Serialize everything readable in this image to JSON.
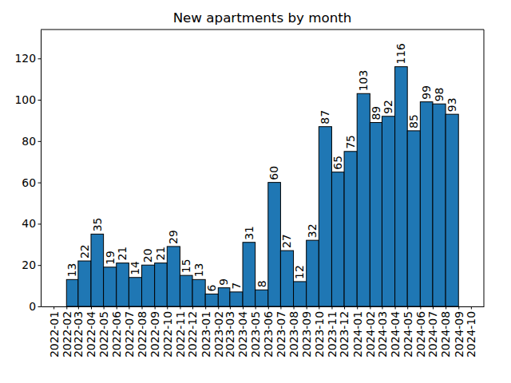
{
  "chart_data": {
    "type": "bar",
    "title": "New apartments by month",
    "x": [
      "2022-02",
      "2022-03",
      "2022-04",
      "2022-05",
      "2022-06",
      "2022-07",
      "2022-08",
      "2022-09",
      "2022-10",
      "2022-11",
      "2022-12",
      "2023-01",
      "2023-02",
      "2023-03",
      "2023-04",
      "2023-05",
      "2023-06",
      "2023-07",
      "2023-08",
      "2023-09",
      "2023-10",
      "2023-11",
      "2023-12",
      "2024-01",
      "2024-02",
      "2024-03",
      "2024-04",
      "2024-05",
      "2024-06",
      "2024-07",
      "2024-08"
    ],
    "values": [
      13,
      22,
      35,
      19,
      21,
      14,
      20,
      21,
      29,
      15,
      13,
      6,
      9,
      7,
      31,
      8,
      60,
      27,
      12,
      32,
      87,
      65,
      75,
      103,
      89,
      92,
      116,
      85,
      99,
      98,
      93
    ],
    "color": "#1f77b4",
    "xlim": [
      "2021-12",
      "2024-11"
    ],
    "xticks": [
      "2022-01",
      "2022-02",
      "2022-03",
      "2022-04",
      "2022-05",
      "2022-06",
      "2022-07",
      "2022-08",
      "2022-09",
      "2022-10",
      "2022-11",
      "2022-12",
      "2023-01",
      "2023-02",
      "2023-03",
      "2023-04",
      "2023-05",
      "2023-06",
      "2023-07",
      "2023-08",
      "2023-09",
      "2023-10",
      "2023-11",
      "2023-12",
      "2024-01",
      "2024-02",
      "2024-03",
      "2024-04",
      "2024-05",
      "2024-06",
      "2024-07",
      "2024-08",
      "2024-09",
      "2024-10"
    ],
    "ylim": [
      0,
      134
    ],
    "yticks": [
      0,
      20,
      40,
      60,
      80,
      100,
      120
    ],
    "data_labels": true,
    "grid": false
  }
}
